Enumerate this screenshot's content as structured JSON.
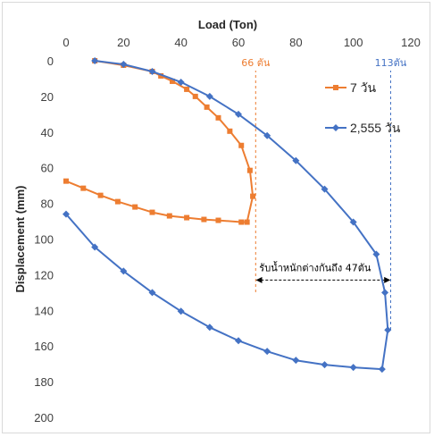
{
  "chart_data": {
    "type": "scatter",
    "xlabel": "Load (Ton)",
    "ylabel": "Displacement (mm)",
    "xlim": [
      0,
      120
    ],
    "ylim": [
      0,
      200
    ],
    "x_axis_position": "top",
    "y_axis_inverted": true,
    "xticks": [
      0,
      20,
      40,
      60,
      80,
      100,
      120
    ],
    "yticks": [
      0,
      20,
      40,
      60,
      80,
      100,
      120,
      140,
      160,
      180,
      200
    ],
    "grid": false,
    "legend_position": "right",
    "series": [
      {
        "name": "7 วัน",
        "color": "#ED7D31",
        "marker": "square",
        "points": [
          [
            10,
            0
          ],
          [
            20,
            2.5
          ],
          [
            30,
            6
          ],
          [
            33,
            8.5
          ],
          [
            37,
            11.5
          ],
          [
            42,
            16
          ],
          [
            45,
            20
          ],
          [
            49,
            26
          ],
          [
            53,
            32
          ],
          [
            57,
            39.5
          ],
          [
            61,
            47.5
          ],
          [
            64,
            61.5
          ],
          [
            65,
            76
          ],
          [
            63,
            90.5
          ],
          [
            61,
            90.5
          ],
          [
            53,
            89.5
          ],
          [
            48,
            89
          ],
          [
            42,
            88
          ],
          [
            36,
            87
          ],
          [
            30,
            85
          ],
          [
            24,
            82
          ],
          [
            18,
            79
          ],
          [
            12,
            75.5
          ],
          [
            6,
            71.5
          ],
          [
            0,
            67.5
          ]
        ]
      },
      {
        "name": "2,555 วัน",
        "color": "#4472C4",
        "marker": "diamond",
        "points": [
          [
            10,
            0
          ],
          [
            20,
            2
          ],
          [
            30,
            6
          ],
          [
            40,
            12
          ],
          [
            50,
            20
          ],
          [
            60,
            30
          ],
          [
            70,
            42
          ],
          [
            80,
            56
          ],
          [
            90,
            72
          ],
          [
            100,
            90.5
          ],
          [
            108,
            108.5
          ],
          [
            111,
            130
          ],
          [
            112,
            151
          ],
          [
            110,
            173
          ],
          [
            100,
            172
          ],
          [
            90,
            170.5
          ],
          [
            80,
            168
          ],
          [
            70,
            163
          ],
          [
            60,
            157
          ],
          [
            50,
            149.5
          ],
          [
            40,
            140.5
          ],
          [
            30,
            130
          ],
          [
            20,
            118
          ],
          [
            10,
            104.5
          ],
          [
            0,
            86
          ]
        ]
      }
    ],
    "reference_lines": [
      {
        "x": 66,
        "label": "66 ตัน",
        "color": "#ED7D31"
      },
      {
        "x": 113,
        "label": "113ตัน",
        "color": "#4472C4"
      }
    ],
    "annotation": {
      "text": "รับน้ำหนักต่างกันถึง  47ตัน",
      "x_from": 66,
      "x_to": 113,
      "y": 122
    }
  }
}
